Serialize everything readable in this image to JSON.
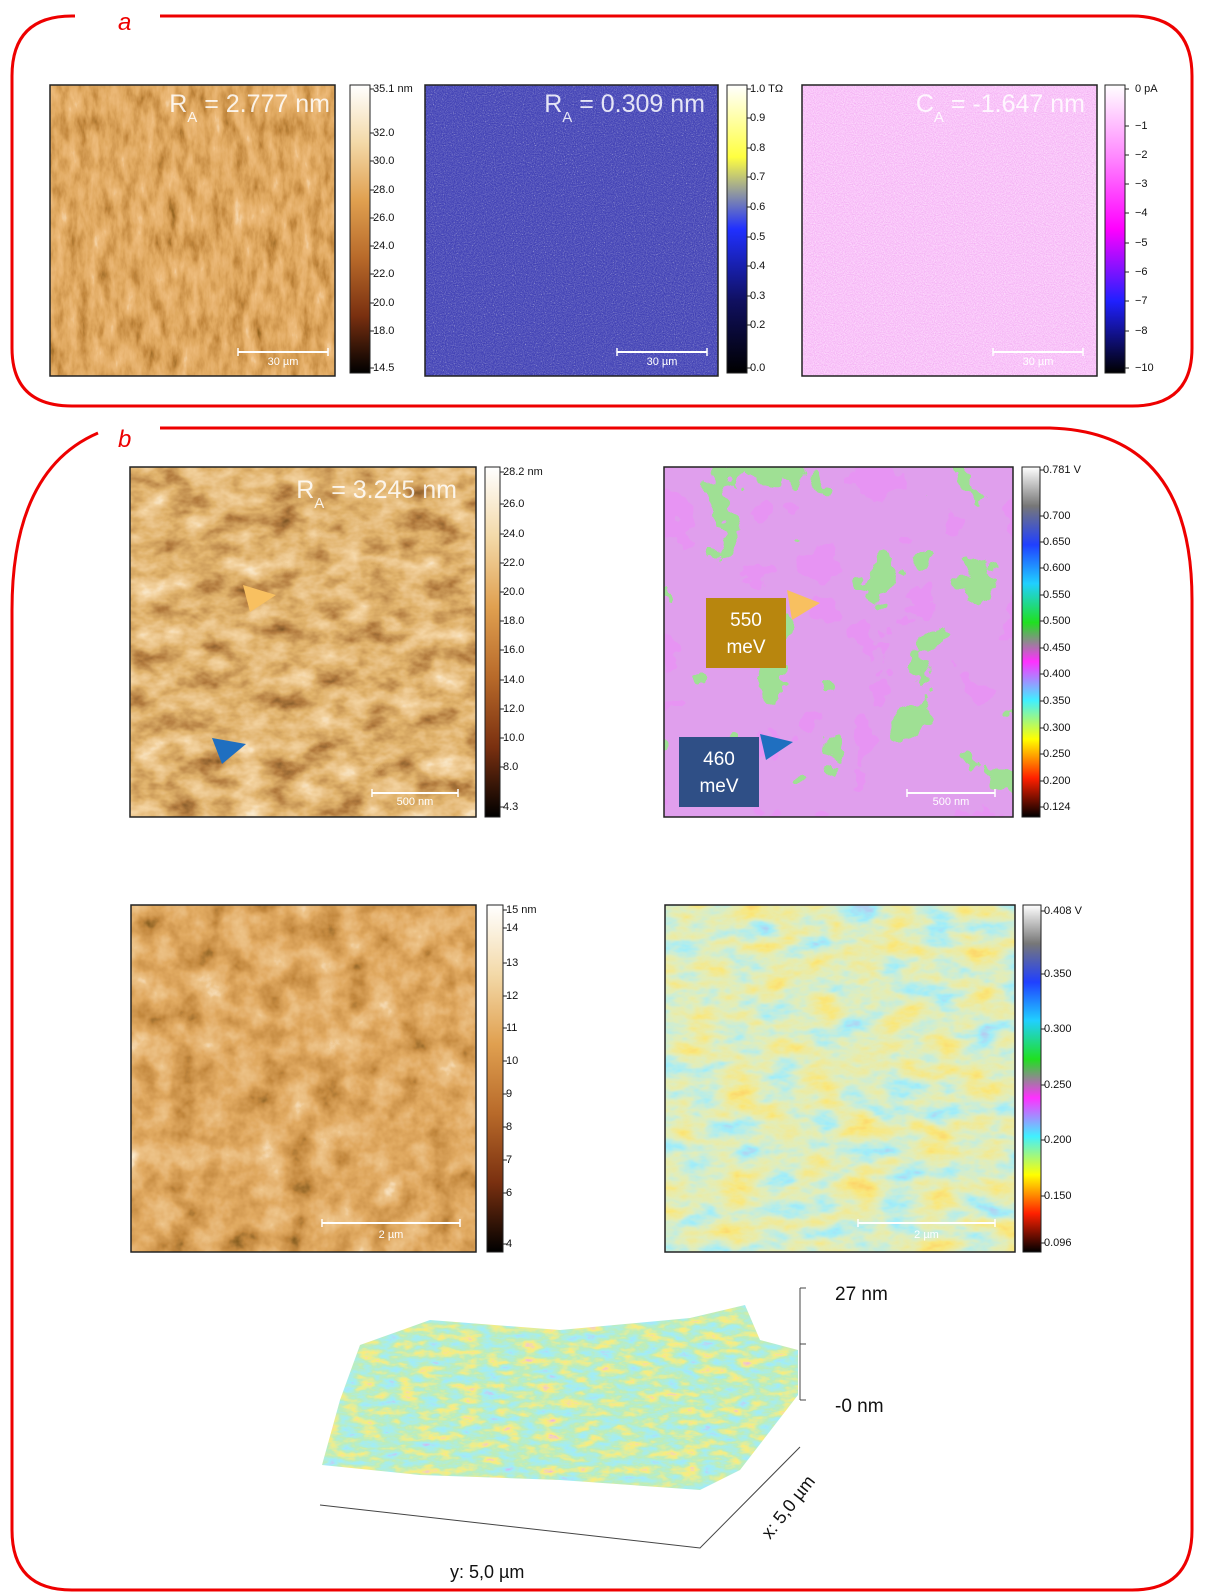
{
  "panel_a": {
    "label": "a",
    "images": [
      {
        "annotation": {
          "symbol": "R",
          "sub": "A",
          "rest": " = 2.777 nm"
        },
        "scale_bar": "30 µm",
        "colorbar": [
          "35.1 nm",
          "32.0",
          "30.0",
          "28.0",
          "26.0",
          "24.0",
          "22.0",
          "20.0",
          "18.0",
          "14.5"
        ]
      },
      {
        "annotation": {
          "symbol": "R",
          "sub": "A",
          "rest": " = 0.309 nm"
        },
        "scale_bar": "30 µm",
        "colorbar": [
          "1.0 TΩ",
          "0.9",
          "0.8",
          "0.7",
          "0.6",
          "0.5",
          "0.4",
          "0.3",
          "0.2",
          "0.0"
        ]
      },
      {
        "annotation": {
          "symbol": "C",
          "sub": "A",
          "rest": " = -1.647 nm"
        },
        "scale_bar": "30 µm",
        "colorbar": [
          "0 pA",
          "−1",
          "−2",
          "−3",
          "−4",
          "−5",
          "−6",
          "−7",
          "−8",
          "−10"
        ]
      }
    ]
  },
  "panel_b": {
    "label": "b",
    "images": [
      {
        "annotation": {
          "symbol": "R",
          "sub": "A",
          "rest": " = 3.245 nm"
        },
        "scale_bar": "500 nm",
        "colorbar": [
          "28.2 nm",
          "26.0",
          "24.0",
          "22.0",
          "20.0",
          "18.0",
          "16.0",
          "14.0",
          "12.0",
          "10.0",
          "8.0",
          "4.3"
        ]
      },
      {
        "scale_bar": "500 nm",
        "colorbar": [
          "0.781 V",
          "0.700",
          "0.650",
          "0.600",
          "0.550",
          "0.500",
          "0.450",
          "0.400",
          "0.350",
          "0.300",
          "0.250",
          "0.200",
          "0.124"
        ],
        "energy_labels": [
          {
            "value": "550",
            "unit": "meV"
          },
          {
            "value": "460",
            "unit": "meV"
          }
        ]
      },
      {
        "scale_bar": "2 µm",
        "colorbar": [
          "15 nm",
          "14",
          "13",
          "12",
          "11",
          "10",
          "9",
          "8",
          "7",
          "6",
          "4"
        ]
      },
      {
        "scale_bar": "2 µm",
        "colorbar": [
          "0.408 V",
          "0.350",
          "0.300",
          "0.250",
          "0.200",
          "0.150",
          "0.096"
        ]
      }
    ],
    "surface_3d": {
      "z_max": "27 nm",
      "z_min": "-0 nm",
      "x_axis": "x: 5,0 µm",
      "y_axis": "y: 5,0 µm"
    }
  }
}
